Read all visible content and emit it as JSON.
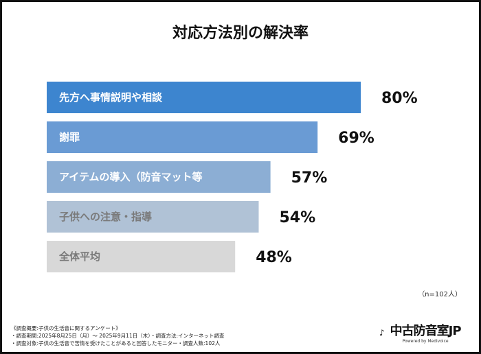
{
  "chart_data": {
    "type": "bar",
    "orientation": "horizontal",
    "title": "対応方法別の解決率",
    "categories": [
      "先方へ事情説明や相談",
      "謝罪",
      "アイテムの導入（防音マット等",
      "子供への注意・指導",
      "全体平均"
    ],
    "values": [
      80,
      69,
      57,
      54,
      48
    ],
    "value_labels": [
      "80%",
      "69%",
      "57%",
      "54%",
      "48%"
    ],
    "colors": [
      "#3d85cf",
      "#6a9bd4",
      "#8caed4",
      "#b0c2d6",
      "#d8d8d8"
    ],
    "label_colors": [
      "#ffffff",
      "#ffffff",
      "#ffffff",
      "#7a7a7a",
      "#7a7a7a"
    ],
    "xlim": [
      0,
      100
    ],
    "grid": false,
    "legend": "none"
  },
  "sample_note": "（n=102人）",
  "footer": [
    "《調査概要:子供の生活音に関するアンケート》",
    "・調査期間:2025年8月25日（月）～ 2025年9月11日（木）・調査方法:インターネット調査",
    "・調査対象:子供の生活音で苦情を受けたことがあると回答したモニター・調査人数:102人"
  ],
  "logo": {
    "main": "中古防音室JP",
    "sub": "Powered by Medivoice"
  }
}
